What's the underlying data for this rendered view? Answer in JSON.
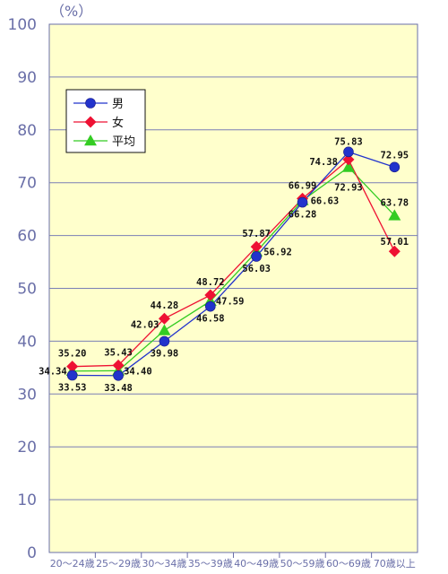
{
  "chart_data": {
    "type": "line",
    "unit_label": "（%）",
    "categories": [
      "20～24歳",
      "25～29歳",
      "30～34歳",
      "35～39歳",
      "40～49歳",
      "50～59歳",
      "60～69歳",
      "70歳以上"
    ],
    "ylim": [
      0,
      100
    ],
    "yticks": [
      "0",
      "10",
      "20",
      "30",
      "40",
      "50",
      "60",
      "70",
      "80",
      "90",
      "100"
    ],
    "grid": true,
    "legend_position": "top-left",
    "series": [
      {
        "name": "男",
        "color": "#2233cc",
        "marker": "circle",
        "values": [
          33.53,
          33.48,
          39.98,
          46.58,
          56.03,
          66.28,
          75.83,
          72.95
        ],
        "labels": [
          "33.53",
          "33.48",
          "39.98",
          "46.58",
          "56.03",
          "66.28",
          "75.83",
          "72.95"
        ]
      },
      {
        "name": "女",
        "color": "#ee1133",
        "marker": "diamond",
        "values": [
          35.2,
          35.43,
          44.28,
          48.72,
          57.87,
          66.99,
          74.38,
          57.01
        ],
        "labels": [
          "35.20",
          "35.43",
          "44.28",
          "48.72",
          "57.87",
          "66.99",
          "74.38",
          "57.01"
        ]
      },
      {
        "name": "平均",
        "color": "#33cc22",
        "marker": "triangle",
        "values": [
          34.34,
          34.4,
          42.03,
          47.59,
          56.92,
          66.63,
          72.93,
          63.78
        ],
        "labels": [
          "34.34",
          "34.40",
          "42.03",
          "47.59",
          "56.92",
          "66.63",
          "72.93",
          "63.78"
        ]
      }
    ]
  }
}
